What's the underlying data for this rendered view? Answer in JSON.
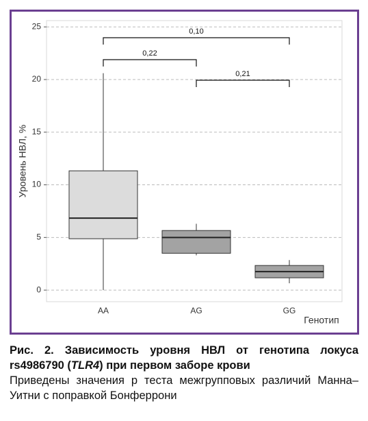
{
  "chart_data": {
    "type": "box",
    "y_label": "Уровень НВЛ, %",
    "x_label": "Генотип",
    "categories": [
      "AA",
      "AG",
      "GG"
    ],
    "colors": [
      "#dcdcdc",
      "#a3a3a3",
      "#a3a3a3"
    ],
    "whislo": [
      0,
      3.3,
      0.65
    ],
    "q1": [
      4.88,
      3.5,
      1.17
    ],
    "med": [
      6.84,
      5.0,
      1.76
    ],
    "q3": [
      11.33,
      5.66,
      2.34
    ],
    "whishi": [
      20.6,
      6.3,
      2.86
    ],
    "ylim": [
      -1.1,
      25.6
    ],
    "yticks": [
      0,
      5,
      10,
      15,
      20,
      25
    ],
    "grid": true,
    "annotations": [
      "0,10",
      "0,22",
      "0,21"
    ],
    "caption_title_start": "Рис. 2. Зависимость уровня НВЛ от генотипа локуса rs4986790 (",
    "caption_title_gene": "TLR4",
    "caption_title_end": ") при первом заборе крови",
    "caption_note": "Приведены значения p теста межгрупповых различий Манна–Уитни с поправкой Бонферрони"
  }
}
